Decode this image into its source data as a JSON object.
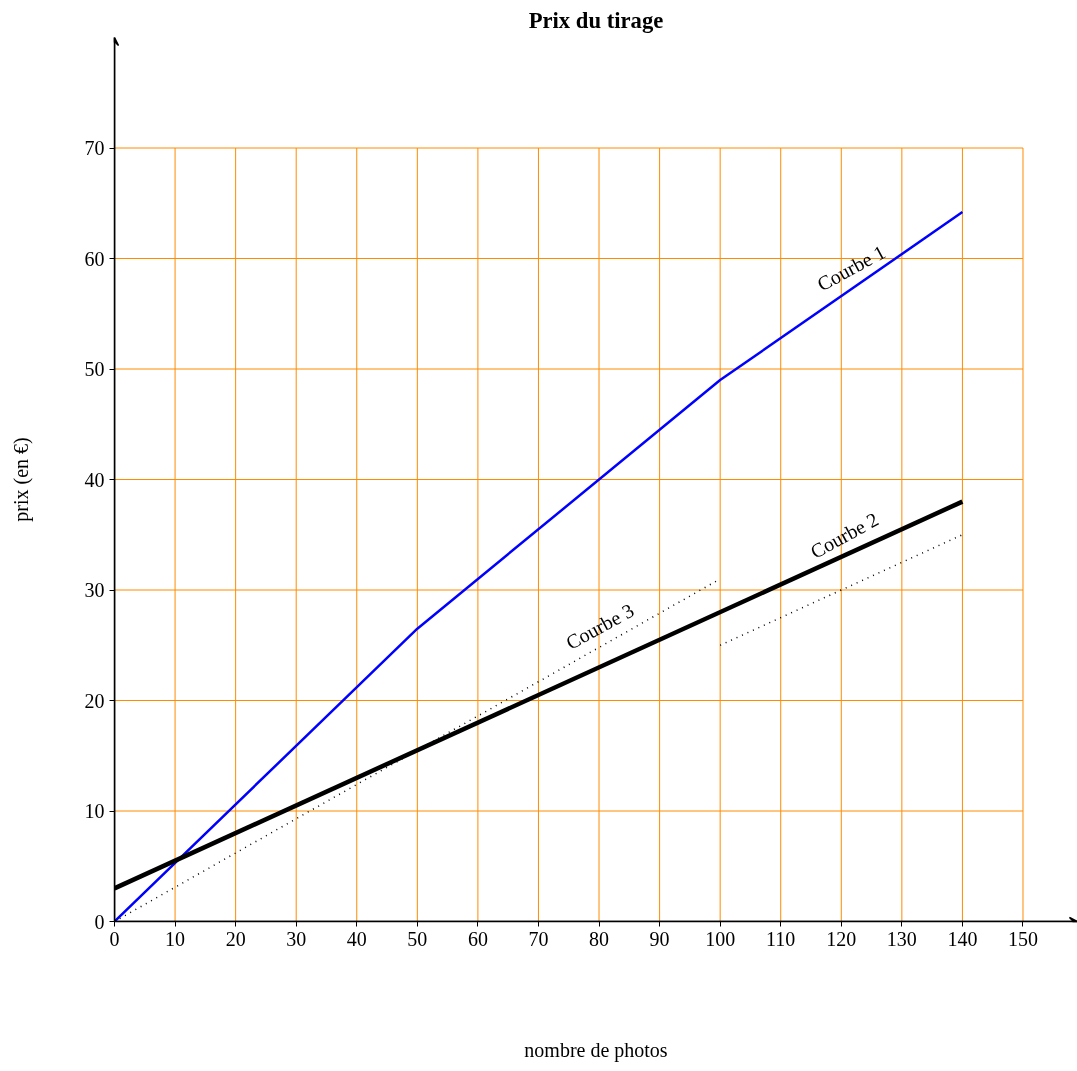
{
  "chart_data": {
    "type": "line",
    "title": "Prix du tirage",
    "xlabel": "nombre de photos",
    "ylabel": "prix (en €)",
    "xlim": [
      0,
      159
    ],
    "ylim": [
      0,
      80
    ],
    "xticks": [
      0,
      10,
      20,
      30,
      40,
      50,
      60,
      70,
      80,
      90,
      100,
      110,
      120,
      130,
      140,
      150
    ],
    "yticks": [
      0,
      10,
      20,
      30,
      40,
      50,
      60,
      70
    ],
    "grid": true,
    "legend": false,
    "marker": "none",
    "series": [
      {
        "name": "Courbe 1",
        "color": "#0000ff",
        "x": [
          0,
          50,
          100,
          140
        ],
        "values": [
          0,
          26.5,
          49,
          64.2
        ]
      },
      {
        "name": "Courbe 2",
        "color": "#000000",
        "x": [
          0,
          140
        ],
        "values": [
          3,
          38
        ]
      },
      {
        "name": "Courbe 3",
        "color": "#000000",
        "line_style": "dotted",
        "x": [
          0,
          100
        ],
        "values": [
          0,
          31
        ]
      },
      {
        "color": "#000000",
        "line_style": "dotted",
        "x": [
          100,
          140
        ],
        "values": [
          25,
          35
        ]
      }
    ]
  }
}
